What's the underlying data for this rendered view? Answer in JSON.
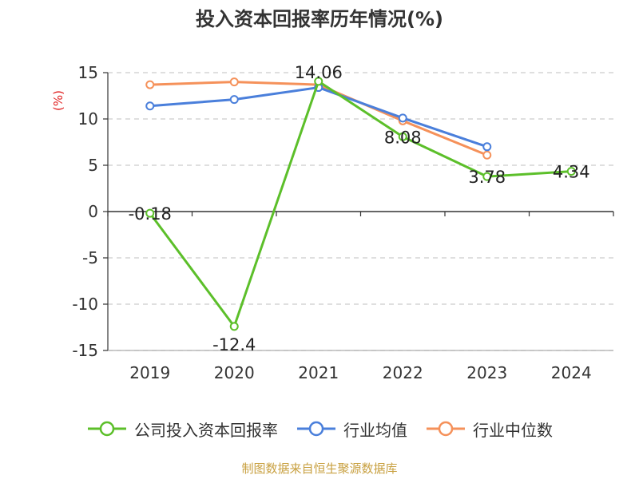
{
  "title": "投入资本回报率历年情况(%)",
  "source": "制图数据来自恒生聚源数据库",
  "chart_data": {
    "type": "line",
    "title": "投入资本回报率历年情况(%)",
    "ylabel": "(%)",
    "xlabel": "",
    "categories": [
      "2019",
      "2020",
      "2021",
      "2022",
      "2023",
      "2024"
    ],
    "ylim": [
      -15,
      15
    ],
    "yticks": [
      15,
      10,
      5,
      0,
      -5,
      -10,
      -15
    ],
    "grid": "horizontal-dashed",
    "legend": "bottom",
    "series": [
      {
        "name": "公司投入资本回报率",
        "color": "#5cbf2a",
        "values": [
          -0.18,
          -12.4,
          14.06,
          8.08,
          3.78,
          4.34
        ],
        "labels": [
          "-0.18",
          "-12.4",
          "14.06",
          "8.08",
          "3.78",
          "4.34"
        ]
      },
      {
        "name": "行业均值",
        "color": "#4a7fdb",
        "values": [
          11.4,
          12.1,
          13.4,
          10.1,
          7.0,
          null
        ]
      },
      {
        "name": "行业中位数",
        "color": "#f5915a",
        "values": [
          13.7,
          14.0,
          13.7,
          9.8,
          6.1,
          null
        ]
      }
    ]
  }
}
